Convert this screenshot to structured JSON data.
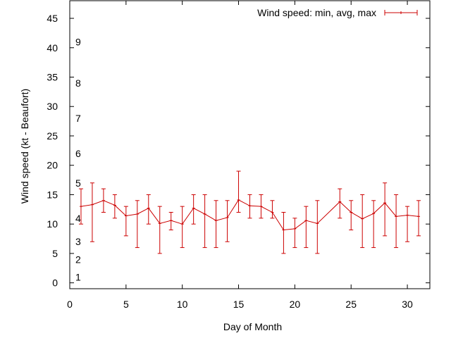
{
  "chart_data": {
    "type": "line",
    "xlabel": "Day of Month",
    "ylabel": "Wind speed (kt - Beaufort)",
    "xlim": [
      0,
      32
    ],
    "ylim": [
      -1,
      48
    ],
    "x_ticks": [
      0,
      5,
      10,
      15,
      20,
      25,
      30
    ],
    "y_ticks": [
      0,
      5,
      10,
      15,
      20,
      25,
      30,
      35,
      40,
      45
    ],
    "grid": false,
    "legend_position": "top-right",
    "beaufort_labels": [
      {
        "label": "1",
        "kt": 1
      },
      {
        "label": "2",
        "kt": 4
      },
      {
        "label": "3",
        "kt": 7
      },
      {
        "label": "4",
        "kt": 11
      },
      {
        "label": "5",
        "kt": 17
      },
      {
        "label": "6",
        "kt": 22
      },
      {
        "label": "7",
        "kt": 28
      },
      {
        "label": "8",
        "kt": 34
      },
      {
        "label": "9",
        "kt": 41
      }
    ],
    "series": [
      {
        "name": "Wind speed: min, avg, max",
        "color": "#cc0000",
        "x": [
          1,
          2,
          3,
          4,
          5,
          6,
          7,
          8,
          9,
          10,
          11,
          12,
          13,
          14,
          15,
          16,
          17,
          18,
          19,
          20,
          21,
          22,
          24,
          25,
          26,
          27,
          28,
          29,
          30,
          31
        ],
        "avg": [
          13,
          13.3,
          14,
          13.2,
          11.4,
          11.7,
          12.7,
          10.1,
          10.6,
          10,
          12.7,
          11.7,
          10.6,
          11.1,
          14.1,
          13.1,
          13,
          12,
          9,
          9.2,
          10.6,
          10.1,
          13.8,
          12,
          10.9,
          11.8,
          13.6,
          11.3,
          11.5,
          11.3
        ],
        "min": [
          10,
          7,
          12,
          11,
          8,
          6,
          10,
          5,
          9,
          6,
          10,
          6,
          6,
          7,
          12,
          11,
          11,
          11,
          5,
          6,
          6,
          5,
          11,
          9,
          6,
          6,
          8,
          6,
          7,
          8
        ],
        "max": [
          16,
          17,
          16,
          15,
          13,
          14,
          15,
          13,
          12,
          13,
          15,
          15,
          14,
          14,
          19,
          15,
          15,
          14,
          12,
          11,
          13,
          14,
          16,
          14,
          15,
          14,
          17,
          15,
          13,
          14
        ]
      }
    ]
  }
}
